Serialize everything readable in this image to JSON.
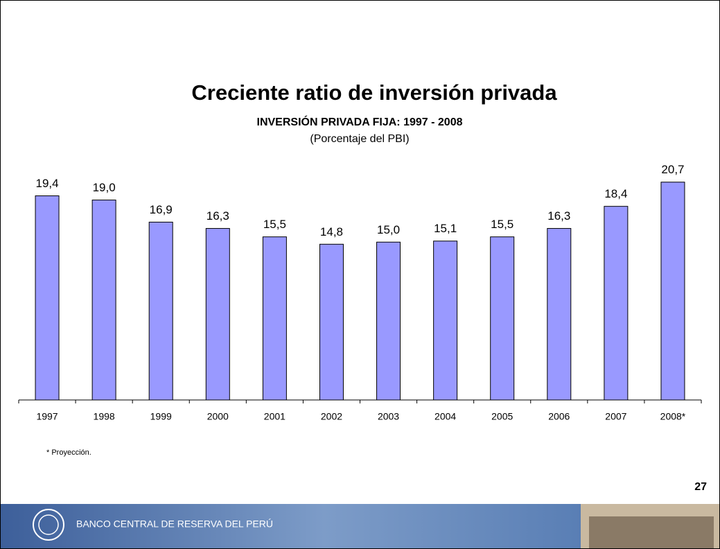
{
  "slide": {
    "title": "Creciente ratio de inversión privada",
    "page_number": "27",
    "footer": "BANCO CENTRAL DE RESERVA DEL PERÚ"
  },
  "chart_data": {
    "type": "bar",
    "title": "INVERSIÓN PRIVADA FIJA: 1997 - 2008",
    "subtitle": "(Porcentaje del PBI)",
    "categories": [
      "1997",
      "1998",
      "1999",
      "2000",
      "2001",
      "2002",
      "2003",
      "2004",
      "2005",
      "2006",
      "2007",
      "2008*"
    ],
    "values": [
      19.4,
      19.0,
      16.9,
      16.3,
      15.5,
      14.8,
      15.0,
      15.1,
      15.5,
      16.3,
      18.4,
      20.7
    ],
    "value_labels": [
      "19,4",
      "19,0",
      "16,9",
      "16,3",
      "15,5",
      "14,8",
      "15,0",
      "15,1",
      "15,5",
      "16,3",
      "18,4",
      "20,7"
    ],
    "color": "#9999ff",
    "ylim": [
      0,
      22
    ],
    "note": "* Proyección."
  }
}
